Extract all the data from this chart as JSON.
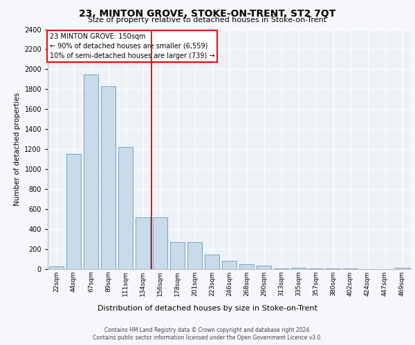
{
  "title": "23, MINTON GROVE, STOKE-ON-TRENT, ST2 7QT",
  "subtitle": "Size of property relative to detached houses in Stoke-on-Trent",
  "xlabel": "Distribution of detached houses by size in Stoke-on-Trent",
  "ylabel": "Number of detached properties",
  "categories": [
    "22sqm",
    "44sqm",
    "67sqm",
    "89sqm",
    "111sqm",
    "134sqm",
    "156sqm",
    "178sqm",
    "201sqm",
    "223sqm",
    "246sqm",
    "268sqm",
    "290sqm",
    "313sqm",
    "335sqm",
    "357sqm",
    "380sqm",
    "402sqm",
    "424sqm",
    "447sqm",
    "469sqm"
  ],
  "values": [
    25,
    1150,
    1950,
    1830,
    1220,
    520,
    520,
    270,
    270,
    145,
    80,
    50,
    35,
    10,
    15,
    10,
    5,
    5,
    3,
    2,
    15
  ],
  "bar_color": "#c9daea",
  "bar_edge_color": "#6699bb",
  "marker_line_index": 5.5,
  "marker_line_label": "23 MINTON GROVE: 150sqm",
  "annotation_line1": "← 90% of detached houses are smaller (6,559)",
  "annotation_line2": "10% of semi-detached houses are larger (739) →",
  "ylim": [
    0,
    2400
  ],
  "yticks": [
    0,
    200,
    400,
    600,
    800,
    1000,
    1200,
    1400,
    1600,
    1800,
    2000,
    2200,
    2400
  ],
  "footer_line1": "Contains HM Land Registry data © Crown copyright and database right 2024.",
  "footer_line2": "Contains public sector information licensed under the Open Government Licence v3.0.",
  "bg_color": "#eef2f7",
  "fig_bg_color": "#f5f7fa",
  "title_fontsize": 10,
  "subtitle_fontsize": 8
}
